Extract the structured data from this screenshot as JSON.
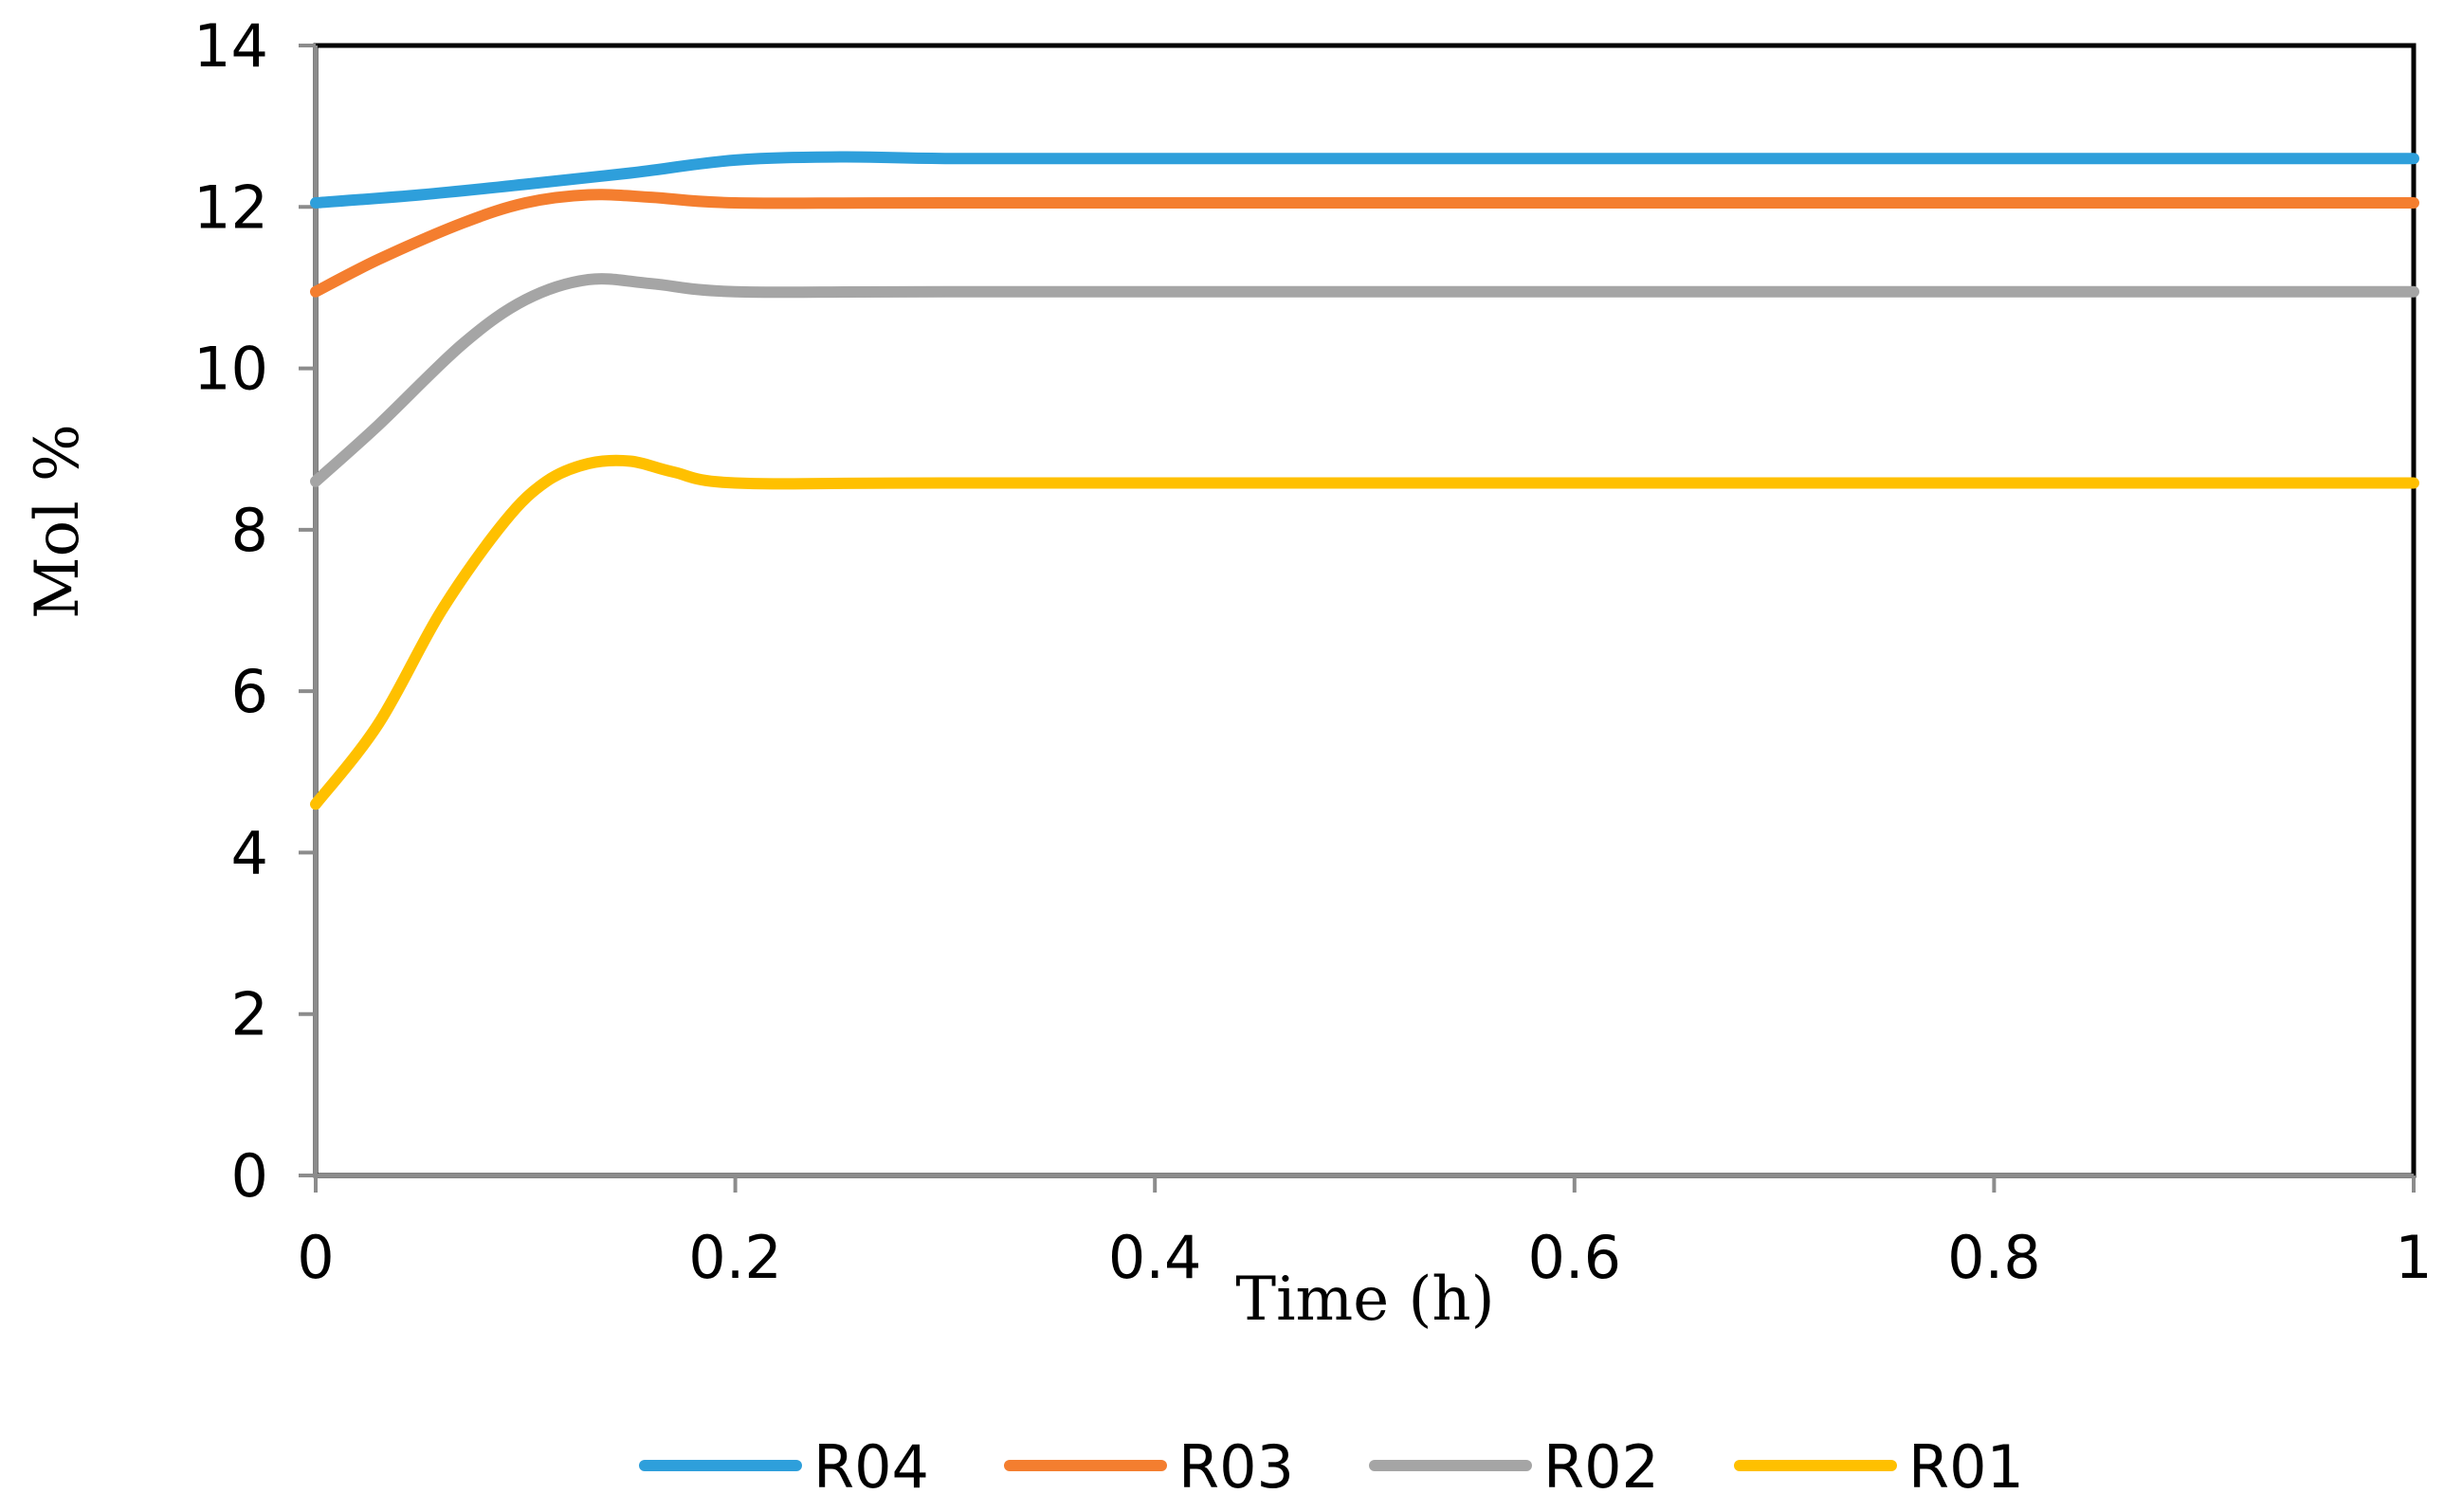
{
  "chart_data": {
    "type": "line",
    "title": "",
    "xlabel": "Time (h)",
    "ylabel": "Mol %",
    "xlim": [
      0,
      1
    ],
    "ylim": [
      0,
      14
    ],
    "x_ticks": [
      "0",
      "0.2",
      "0.4",
      "0.6",
      "0.8",
      "1"
    ],
    "y_ticks": [
      "0",
      "2",
      "4",
      "6",
      "8",
      "10",
      "12",
      "14"
    ],
    "grid": false,
    "legend_position": "bottom",
    "series": [
      {
        "name": "R04",
        "color": "#2E9FDB",
        "points": [
          [
            0,
            12.05
          ],
          [
            0.05,
            12.15
          ],
          [
            0.1,
            12.28
          ],
          [
            0.15,
            12.42
          ],
          [
            0.2,
            12.58
          ],
          [
            0.25,
            12.62
          ],
          [
            0.3,
            12.6
          ],
          [
            0.4,
            12.6
          ],
          [
            0.6,
            12.6
          ],
          [
            0.8,
            12.6
          ],
          [
            1.0,
            12.6
          ]
        ]
      },
      {
        "name": "R03",
        "color": "#F47E2F",
        "points": [
          [
            0,
            10.95
          ],
          [
            0.03,
            11.35
          ],
          [
            0.07,
            11.8
          ],
          [
            0.1,
            12.05
          ],
          [
            0.13,
            12.15
          ],
          [
            0.16,
            12.12
          ],
          [
            0.2,
            12.05
          ],
          [
            0.3,
            12.05
          ],
          [
            0.6,
            12.05
          ],
          [
            0.8,
            12.05
          ],
          [
            1.0,
            12.05
          ]
        ]
      },
      {
        "name": "R02",
        "color": "#A5A5A5",
        "points": [
          [
            0,
            8.6
          ],
          [
            0.03,
            9.3
          ],
          [
            0.07,
            10.3
          ],
          [
            0.1,
            10.85
          ],
          [
            0.13,
            11.1
          ],
          [
            0.16,
            11.05
          ],
          [
            0.2,
            10.95
          ],
          [
            0.3,
            10.95
          ],
          [
            0.6,
            10.95
          ],
          [
            0.8,
            10.95
          ],
          [
            1.0,
            10.95
          ]
        ]
      },
      {
        "name": "R01",
        "color": "#FFC000",
        "points": [
          [
            0,
            4.6
          ],
          [
            0.03,
            5.6
          ],
          [
            0.06,
            7.0
          ],
          [
            0.09,
            8.1
          ],
          [
            0.11,
            8.6
          ],
          [
            0.13,
            8.82
          ],
          [
            0.15,
            8.85
          ],
          [
            0.17,
            8.72
          ],
          [
            0.2,
            8.58
          ],
          [
            0.3,
            8.58
          ],
          [
            0.6,
            8.58
          ],
          [
            0.8,
            8.58
          ],
          [
            1.0,
            8.58
          ]
        ]
      }
    ]
  }
}
